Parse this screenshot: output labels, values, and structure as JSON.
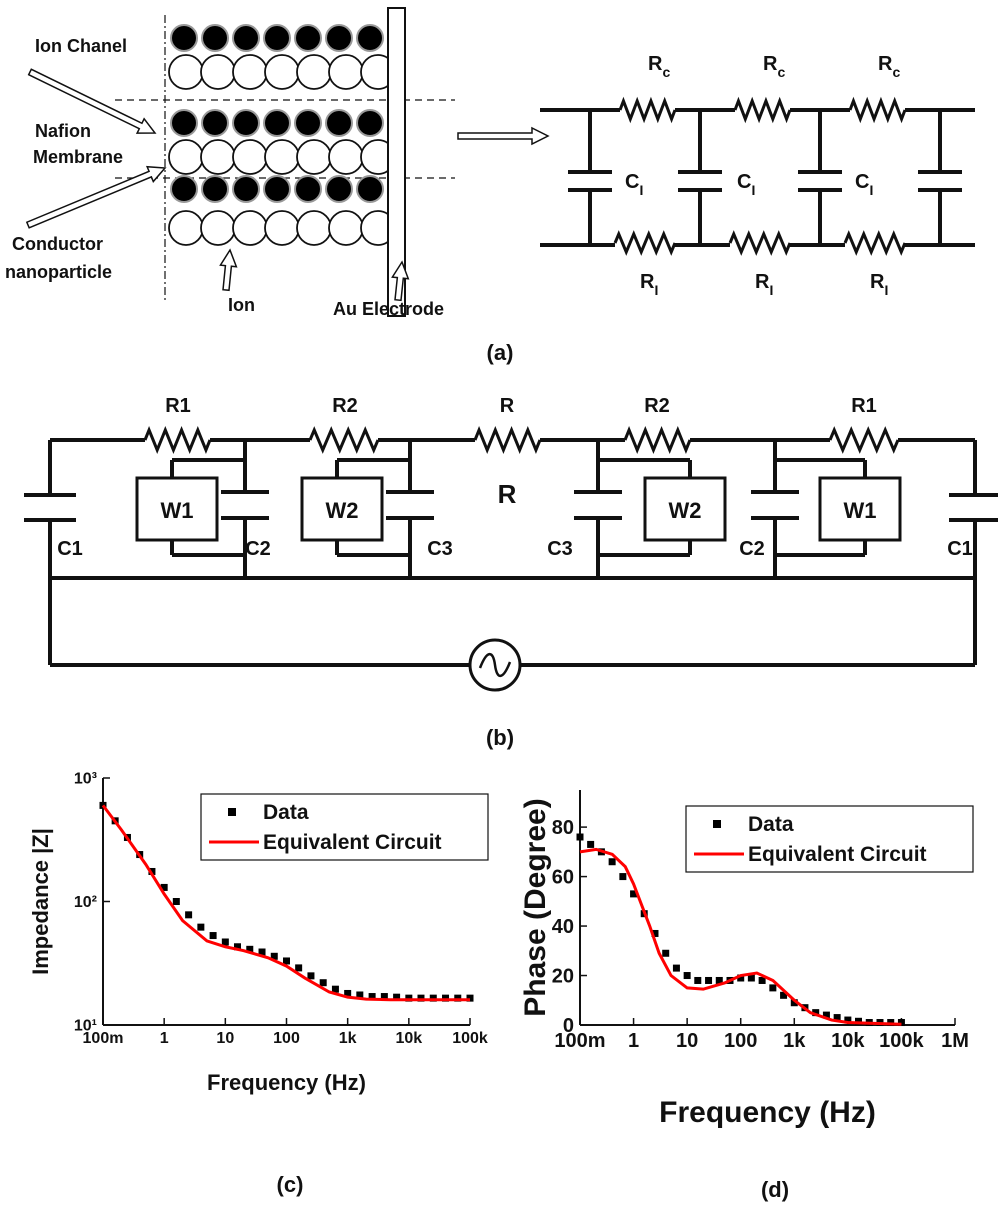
{
  "panel_a": {
    "labels": [
      "Ion Chanel",
      "Nafion",
      "Membrane",
      "Conductor",
      "nanoparticle",
      "Ion",
      "Au Electrode"
    ],
    "top_resistors": [
      {
        "symbol": "R",
        "sub": "c"
      },
      {
        "symbol": "R",
        "sub": "c"
      },
      {
        "symbol": "R",
        "sub": "c"
      }
    ],
    "capacitors": [
      {
        "symbol": "C",
        "sub": "I"
      },
      {
        "symbol": "C",
        "sub": "I"
      },
      {
        "symbol": "C",
        "sub": "I"
      }
    ],
    "bottom_resistors": [
      {
        "symbol": "R",
        "sub": "I"
      },
      {
        "symbol": "R",
        "sub": "I"
      },
      {
        "symbol": "R",
        "sub": "I"
      }
    ],
    "caption": "(a)"
  },
  "panel_b": {
    "resistors": [
      "R1",
      "R2",
      "R",
      "R2",
      "R1"
    ],
    "warburg": [
      "W1",
      "W2",
      "W2",
      "W1"
    ],
    "capacitors": [
      "C1",
      "C2",
      "C3",
      "C3",
      "C2",
      "C1"
    ],
    "caption": "(b)"
  },
  "chart_data": [
    {
      "type": "line",
      "caption": "(c)",
      "x_label": "Frequency (Hz)",
      "y_label": "Impedance |Z|",
      "xscale": "log",
      "yscale": "log",
      "xlim": [
        0.1,
        100000
      ],
      "ylim": [
        10,
        1000
      ],
      "xticks": [
        {
          "value": 0.1,
          "label": "100m"
        },
        1,
        10,
        100,
        {
          "value": 1000,
          "label": "1k"
        },
        {
          "value": 10000,
          "label": "10k"
        },
        {
          "value": 100000,
          "label": "100k"
        }
      ],
      "yticks": [
        {
          "value": 10,
          "label": "10¹"
        },
        {
          "value": 100,
          "label": "10²"
        },
        {
          "value": 1000,
          "label": "10³"
        }
      ],
      "legend": "upper right",
      "series": [
        {
          "name": "Data",
          "type": "scatter",
          "color": "#000000",
          "x": [
            0.1,
            0.158,
            0.251,
            0.398,
            0.631,
            1,
            1.58,
            2.51,
            3.98,
            6.31,
            10,
            15.8,
            25.1,
            39.8,
            63.1,
            100,
            158,
            251,
            398,
            631,
            1000,
            1580,
            2510,
            3980,
            6310,
            10000,
            15800,
            25100,
            39800,
            63100,
            100000
          ],
          "values": [
            600,
            450,
            330,
            240,
            175,
            130,
            100,
            78,
            62,
            53,
            47,
            43,
            41,
            39,
            36,
            33,
            29,
            25,
            22,
            19.5,
            18,
            17.5,
            17,
            17,
            16.8,
            16.5,
            16.5,
            16.5,
            16.5,
            16.5,
            16.5
          ]
        },
        {
          "name": "Equivalent Circuit",
          "type": "line",
          "color": "#ff0000",
          "x": [
            0.1,
            0.2,
            0.5,
            1,
            2,
            5,
            10,
            20,
            50,
            100,
            200,
            500,
            1000,
            2000,
            5000,
            10000,
            100000
          ],
          "values": [
            600,
            380,
            200,
            115,
            70,
            48,
            43,
            40,
            35,
            30,
            24,
            18.5,
            16.8,
            16.2,
            16,
            16,
            16
          ]
        }
      ]
    },
    {
      "type": "line",
      "caption": "(d)",
      "x_label": "Frequency (Hz)",
      "y_label": "Phase (Degree)",
      "xscale": "log",
      "yscale": "linear",
      "xlim": [
        0.1,
        1000000
      ],
      "ylim": [
        0,
        95
      ],
      "xticks": [
        {
          "value": 0.1,
          "label": "100m"
        },
        1,
        10,
        100,
        {
          "value": 1000,
          "label": "1k"
        },
        {
          "value": 10000,
          "label": "10k"
        },
        {
          "value": 100000,
          "label": "100k"
        },
        {
          "value": 1000000,
          "label": "1M"
        }
      ],
      "yticks": [
        0,
        20,
        40,
        60,
        80
      ],
      "legend": "upper right",
      "series": [
        {
          "name": "Data",
          "type": "scatter",
          "color": "#000000",
          "x": [
            0.1,
            0.158,
            0.251,
            0.398,
            0.631,
            1,
            1.58,
            2.51,
            3.98,
            6.31,
            10,
            15.8,
            25.1,
            39.8,
            63.1,
            100,
            158,
            251,
            398,
            631,
            1000,
            1580,
            2510,
            3980,
            6310,
            10000,
            15800,
            25100,
            39800,
            63100,
            100000
          ],
          "values": [
            76,
            73,
            70,
            66,
            60,
            53,
            45,
            37,
            29,
            23,
            20,
            18,
            18,
            18,
            18,
            19,
            19,
            18,
            15,
            12,
            9,
            7,
            5,
            4,
            3,
            2,
            1.5,
            1,
            1,
            1,
            1
          ]
        },
        {
          "name": "Equivalent Circuit",
          "type": "line",
          "color": "#ff0000",
          "x": [
            0.1,
            0.2,
            0.4,
            0.7,
            1,
            2,
            3,
            5,
            10,
            20,
            50,
            100,
            200,
            400,
            1000,
            2000,
            5000,
            10000,
            50000,
            100000
          ],
          "values": [
            70,
            71,
            69,
            64,
            57,
            40,
            29,
            20,
            15,
            14.5,
            17,
            20,
            21,
            18,
            10,
            5,
            2,
            1,
            0.5,
            0.3
          ]
        }
      ]
    }
  ]
}
